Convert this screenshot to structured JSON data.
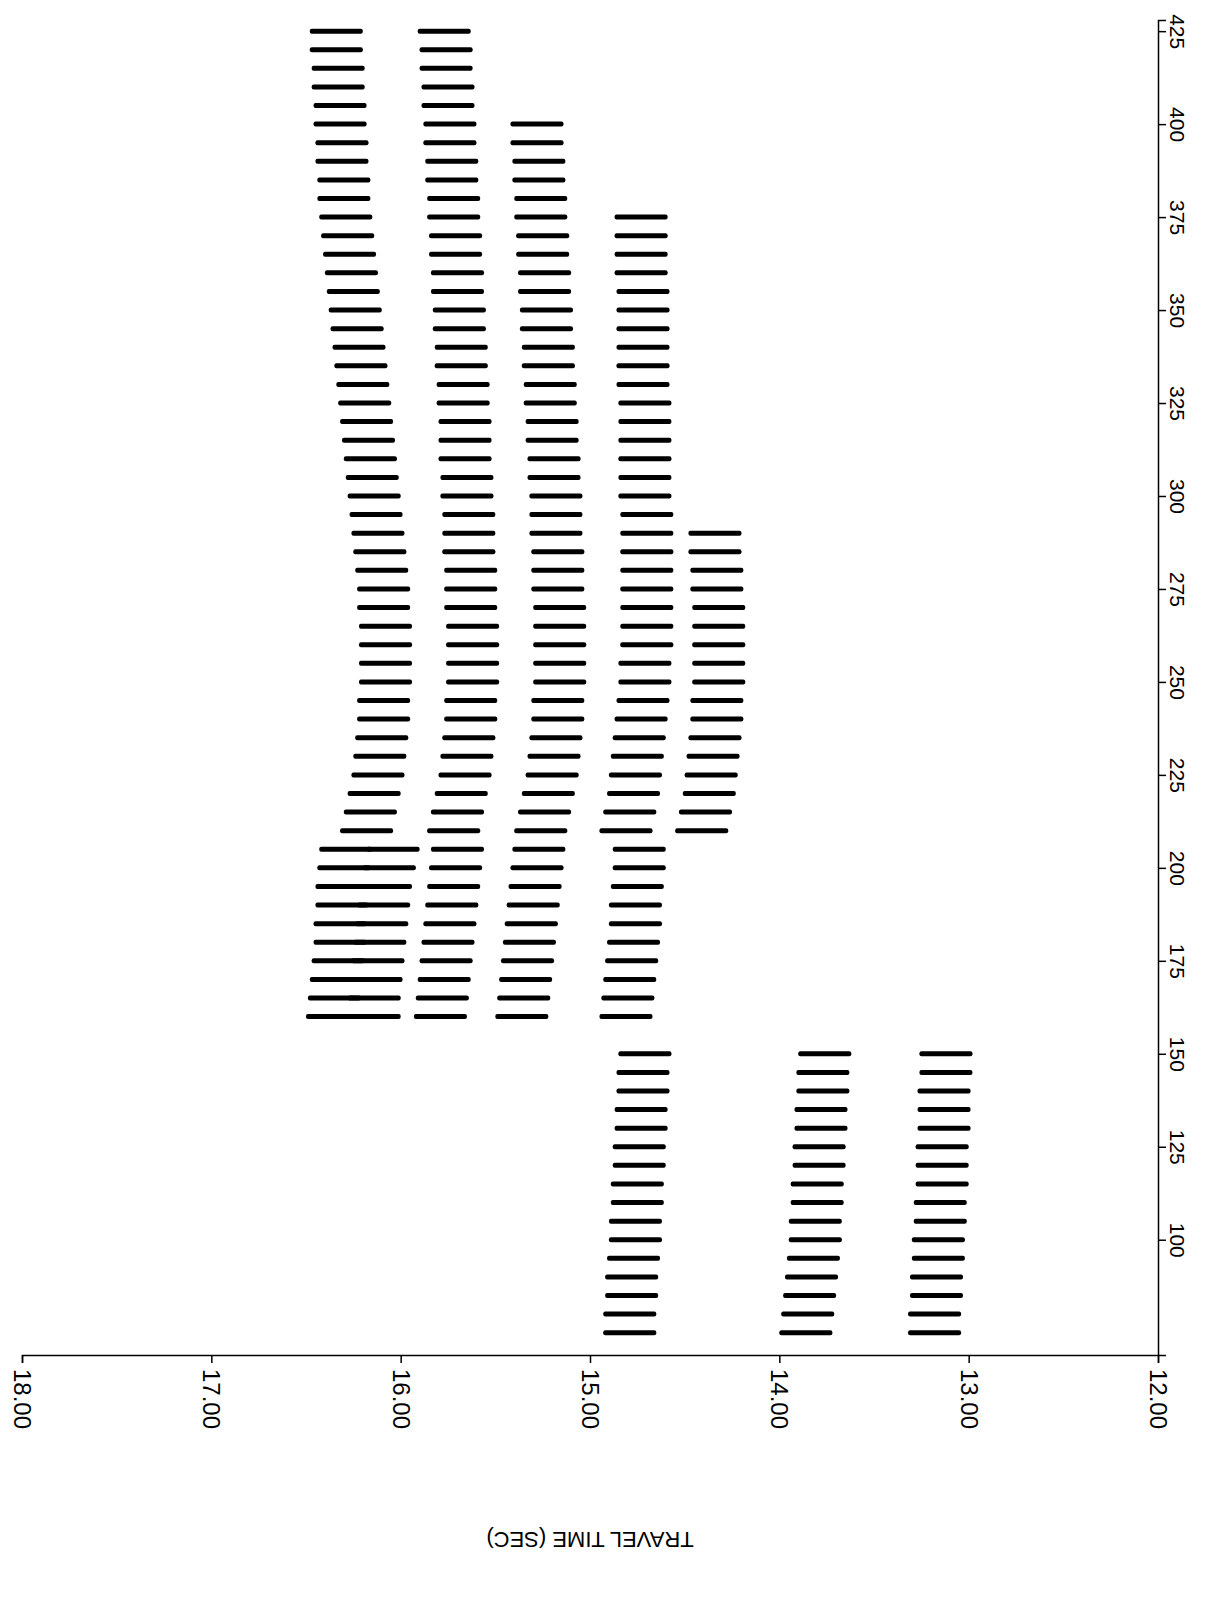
{
  "chart_data": {
    "type": "scatter",
    "marker": "dash",
    "color": "#000000",
    "ylabel": "TRAVEL TIME (SEC)",
    "ylim": [
      18,
      12
    ],
    "yticks": [
      {
        "value": 18,
        "label": "18.00"
      },
      {
        "value": 17,
        "label": "17.00"
      },
      {
        "value": 16,
        "label": "16.00"
      },
      {
        "value": 15,
        "label": "15.00"
      },
      {
        "value": 14,
        "label": "14.00"
      },
      {
        "value": 13,
        "label": "13.00"
      },
      {
        "value": 12,
        "label": "12.00"
      }
    ],
    "xlim": [
      69,
      428
    ],
    "xticks": [
      100,
      125,
      150,
      175,
      200,
      225,
      250,
      275,
      300,
      325,
      350,
      375,
      400,
      425
    ],
    "series": [
      {
        "x": [
          75,
          80,
          85,
          90,
          95,
          100,
          105,
          110,
          115,
          120,
          125,
          130,
          135,
          140,
          145,
          150
        ],
        "values": [
          14.93,
          14.93,
          14.92,
          14.92,
          14.91,
          14.9,
          14.9,
          14.89,
          14.89,
          14.88,
          14.88,
          14.87,
          14.87,
          14.86,
          14.86,
          14.85
        ]
      },
      {
        "x": [
          75,
          80,
          85,
          90,
          95,
          100,
          105,
          110,
          115,
          120,
          125,
          130,
          135,
          140,
          145,
          150
        ],
        "values": [
          14.0,
          13.99,
          13.98,
          13.97,
          13.96,
          13.95,
          13.95,
          13.94,
          13.94,
          13.93,
          13.93,
          13.92,
          13.92,
          13.91,
          13.91,
          13.9
        ]
      },
      {
        "x": [
          75,
          80,
          85,
          90,
          95,
          100,
          105,
          110,
          115,
          120,
          125,
          130,
          135,
          140,
          145,
          150
        ],
        "values": [
          13.32,
          13.32,
          13.31,
          13.31,
          13.3,
          13.3,
          13.29,
          13.29,
          13.28,
          13.28,
          13.28,
          13.27,
          13.27,
          13.27,
          13.26,
          13.26
        ]
      },
      {
        "x": [
          160,
          165,
          170,
          175,
          180,
          185,
          190,
          195,
          200,
          205
        ],
        "values": [
          16.5,
          16.49,
          16.48,
          16.47,
          16.46,
          16.46,
          16.45,
          16.45,
          16.44,
          16.43
        ]
      },
      {
        "x": [
          160,
          165,
          170,
          175,
          180,
          185,
          190,
          195,
          200,
          205
        ],
        "values": [
          16.28,
          16.28,
          16.27,
          16.26,
          16.25,
          16.24,
          16.23,
          16.22,
          16.2,
          16.18
        ]
      },
      {
        "x": [
          160,
          165,
          170,
          175,
          180,
          185,
          190,
          195,
          200,
          205
        ],
        "values": [
          15.93,
          15.92,
          15.91,
          15.9,
          15.89,
          15.88,
          15.87,
          15.86,
          15.85,
          15.84
        ]
      },
      {
        "x": [
          160,
          165,
          170,
          175,
          180,
          185,
          190,
          195,
          200,
          205
        ],
        "values": [
          15.5,
          15.49,
          15.48,
          15.47,
          15.46,
          15.45,
          15.44,
          15.43,
          15.42,
          15.41
        ]
      },
      {
        "x": [
          160,
          165,
          170,
          175,
          180,
          185,
          190,
          195,
          200,
          205
        ],
        "values": [
          14.95,
          14.94,
          14.93,
          14.92,
          14.91,
          14.9,
          14.9,
          14.89,
          14.88,
          14.88
        ]
      },
      {
        "x": [
          210,
          215,
          220,
          225,
          230,
          235,
          240,
          245,
          250,
          255,
          260,
          265,
          270,
          275,
          280,
          285,
          290,
          295,
          300,
          305,
          310,
          315,
          320,
          325,
          330,
          335,
          340,
          345,
          350,
          355,
          360,
          365,
          370,
          375,
          380,
          385,
          390,
          395,
          400,
          405,
          410,
          415,
          420,
          425
        ],
        "values": [
          16.32,
          16.3,
          16.28,
          16.26,
          16.25,
          16.24,
          16.23,
          16.23,
          16.22,
          16.22,
          16.22,
          16.22,
          16.23,
          16.23,
          16.24,
          16.25,
          16.26,
          16.27,
          16.28,
          16.29,
          16.3,
          16.31,
          16.32,
          16.33,
          16.34,
          16.35,
          16.36,
          16.37,
          16.38,
          16.39,
          16.4,
          16.41,
          16.42,
          16.43,
          16.44,
          16.44,
          16.45,
          16.45,
          16.46,
          16.46,
          16.47,
          16.47,
          16.48,
          16.48
        ]
      },
      {
        "x": [
          210,
          215,
          220,
          225,
          230,
          235,
          240,
          245,
          250,
          255,
          260,
          265,
          270,
          275,
          280,
          285,
          290,
          295,
          300,
          305,
          310,
          315,
          320,
          325,
          330,
          335,
          340,
          345,
          350,
          355,
          360,
          365,
          370,
          375,
          380,
          385,
          390,
          395,
          400,
          405,
          410,
          415,
          420,
          425
        ],
        "values": [
          15.86,
          15.84,
          15.82,
          15.8,
          15.79,
          15.78,
          15.77,
          15.77,
          15.76,
          15.76,
          15.76,
          15.76,
          15.77,
          15.77,
          15.77,
          15.78,
          15.78,
          15.78,
          15.79,
          15.79,
          15.8,
          15.8,
          15.8,
          15.81,
          15.81,
          15.82,
          15.82,
          15.83,
          15.83,
          15.84,
          15.84,
          15.85,
          15.85,
          15.86,
          15.86,
          15.87,
          15.87,
          15.88,
          15.88,
          15.89,
          15.89,
          15.9,
          15.9,
          15.91
        ]
      },
      {
        "x": [
          210,
          215,
          220,
          225,
          230,
          235,
          240,
          245,
          250,
          255,
          260,
          265,
          270,
          275,
          280,
          285,
          290,
          295,
          300,
          305,
          310,
          315,
          320,
          325,
          330,
          335,
          340,
          345,
          350,
          355,
          360,
          365,
          370,
          375,
          380,
          385,
          390,
          395,
          400
        ],
        "values": [
          15.4,
          15.38,
          15.36,
          15.34,
          15.33,
          15.32,
          15.31,
          15.31,
          15.3,
          15.3,
          15.3,
          15.3,
          15.3,
          15.31,
          15.31,
          15.31,
          15.32,
          15.32,
          15.32,
          15.33,
          15.33,
          15.34,
          15.34,
          15.35,
          15.35,
          15.36,
          15.36,
          15.37,
          15.37,
          15.38,
          15.38,
          15.39,
          15.39,
          15.4,
          15.4,
          15.41,
          15.41,
          15.42,
          15.42
        ]
      },
      {
        "x": [
          210,
          215,
          220,
          225,
          230,
          235,
          240,
          245,
          250,
          255,
          260,
          265,
          270,
          275,
          280,
          285,
          290,
          295,
          300,
          305,
          310,
          315,
          320,
          325,
          330,
          335,
          340,
          345,
          350,
          355,
          360,
          365,
          370,
          375
        ],
        "values": [
          14.95,
          14.93,
          14.91,
          14.9,
          14.89,
          14.88,
          14.87,
          14.86,
          14.85,
          14.85,
          14.84,
          14.84,
          14.84,
          14.84,
          14.84,
          14.84,
          14.84,
          14.84,
          14.85,
          14.85,
          14.85,
          14.85,
          14.85,
          14.85,
          14.86,
          14.86,
          14.86,
          14.86,
          14.86,
          14.86,
          14.87,
          14.87,
          14.87,
          14.87
        ]
      },
      {
        "x": [
          210,
          215,
          220,
          225,
          230,
          235,
          240,
          245,
          250,
          255,
          260,
          265,
          270,
          275,
          280,
          285,
          290
        ],
        "values": [
          14.55,
          14.53,
          14.51,
          14.5,
          14.49,
          14.48,
          14.47,
          14.47,
          14.46,
          14.46,
          14.46,
          14.46,
          14.46,
          14.47,
          14.47,
          14.48,
          14.48
        ]
      }
    ]
  }
}
